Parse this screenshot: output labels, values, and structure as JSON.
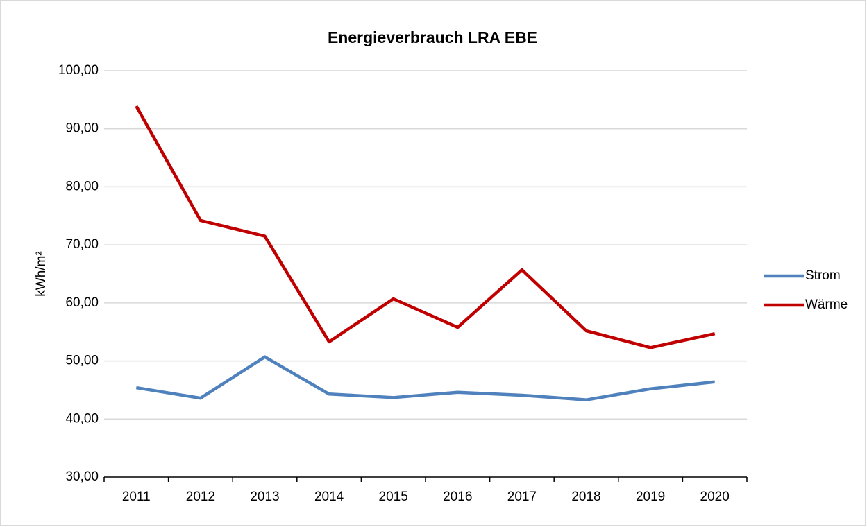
{
  "chart_data": {
    "type": "line",
    "title": "Energieverbrauch LRA EBE",
    "y_label": "kWh/m²",
    "categories": [
      "2011",
      "2012",
      "2013",
      "2014",
      "2015",
      "2016",
      "2017",
      "2018",
      "2019",
      "2020"
    ],
    "series": [
      {
        "name": "Strom",
        "color": "#4f81bd",
        "values": [
          45.4,
          43.6,
          50.7,
          44.3,
          43.7,
          44.6,
          44.1,
          43.3,
          45.2,
          46.4
        ]
      },
      {
        "name": "Wärme",
        "color": "#c00000",
        "values": [
          93.9,
          74.2,
          71.5,
          53.3,
          60.7,
          55.8,
          65.7,
          55.2,
          52.3,
          54.7
        ]
      }
    ],
    "ylim": [
      30,
      100
    ],
    "yticks": [
      {
        "value": 30,
        "label": "30,00"
      },
      {
        "value": 40,
        "label": "40,00"
      },
      {
        "value": 50,
        "label": "50,00"
      },
      {
        "value": 60,
        "label": "60,00"
      },
      {
        "value": 70,
        "label": "70,00"
      },
      {
        "value": 80,
        "label": "80,00"
      },
      {
        "value": 90,
        "label": "90,00"
      },
      {
        "value": 100,
        "label": "100,00"
      }
    ],
    "grid": true,
    "legend": "right"
  }
}
